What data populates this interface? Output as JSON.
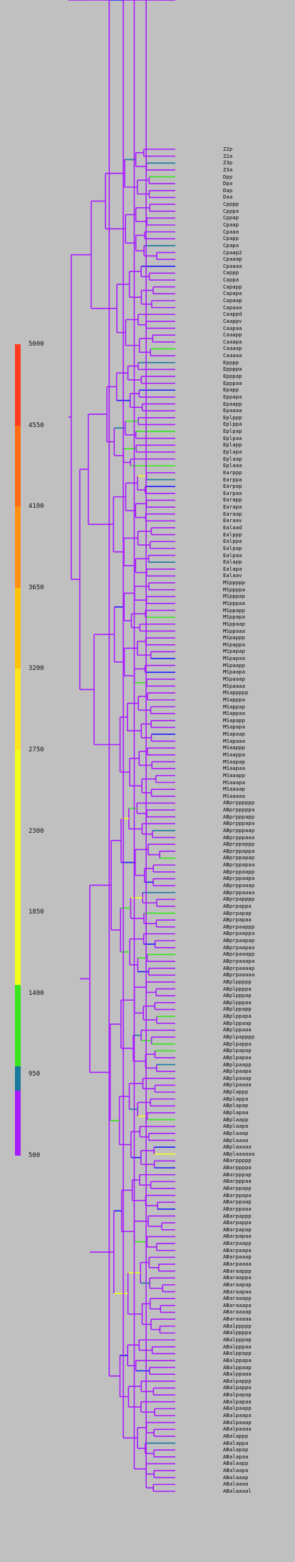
{
  "legend": {
    "ticks": [
      "5000",
      "4550",
      "4100",
      "3650",
      "3200",
      "2750",
      "2300",
      "1850",
      "1400",
      "950",
      "500"
    ],
    "bands": [
      {
        "color": "#ff3a1e"
      },
      {
        "color": "#ff6a14"
      },
      {
        "color": "#ff8f10"
      },
      {
        "color": "#ffc20a"
      },
      {
        "color": "#ffe61a"
      },
      {
        "color": "#f2ff1a"
      },
      {
        "color": "#36e61a"
      },
      {
        "color": "#177a9c"
      },
      {
        "color": "#a81aff"
      }
    ]
  },
  "tree": {
    "branch_color": "#a81aff",
    "accent_colors": [
      "#1a1aff",
      "#36e61a",
      "#f2ff1a",
      "#177a9c"
    ]
  },
  "leaves": [
    "Z2p",
    "Z2a",
    "Z3p",
    "Z3a",
    "Dpp",
    "Dpa",
    "Dap",
    "Daa",
    "Cpppp",
    "Cpppa",
    "Cppap",
    "Cpaap",
    "Cpaaa",
    "Cpapp",
    "Cpapa",
    "Cpaap2",
    "Cpaaap",
    "Cpaaaa",
    "Cappp",
    "Cappa",
    "Capapp",
    "Capapa",
    "Capaap",
    "Capaaa",
    "Caappd",
    "Caappv",
    "Caapaa",
    "Caaapp",
    "Caaapa",
    "Caaaap",
    "Caaaaa",
    "Epppp",
    "Eppppa",
    "Epppap",
    "Epppaa",
    "Epapp",
    "Eppapa",
    "Epaapp",
    "Epaaaa",
    "Eplppp",
    "Eplppa",
    "Eplpap",
    "Eplpaa",
    "Eplapp",
    "Eplapa",
    "Eplaap",
    "Eplaaa",
    "Earppp",
    "Earppa",
    "Earpap",
    "Earpaa",
    "Earapp",
    "Earapa",
    "Earaap",
    "Earaav",
    "Ealaad",
    "Ealppp",
    "Ealppa",
    "Ealpap",
    "Ealpaa",
    "Ealapp",
    "Ealapa",
    "Ealaav",
    "MSppppp",
    "MSppppa",
    "MSpppap",
    "MSpppaa",
    "MSppapp",
    "MSppapa",
    "MSppaap",
    "MSppaaa",
    "MSpappp",
    "MSpappa",
    "MSpapap",
    "MSpapaa",
    "MSpaapp",
    "MSpaapa",
    "MSpaaap",
    "MSpaaaa",
    "MSappppp",
    "MSapppa",
    "MSappap",
    "MSappaa",
    "MSapapp",
    "MSapapa",
    "MSapaap",
    "MSapaaa",
    "MSaappp",
    "MSaappa",
    "MSaapap",
    "MSaapaa",
    "MSaaapp",
    "MSaaapa",
    "MSaaaap",
    "MSaaaaa",
    "ABprpppppp",
    "ABprpppppa",
    "ABprpppapp",
    "ABprpppapa",
    "ABprpppaap",
    "ABprpppaaa",
    "ABprppappp",
    "ABprppappa",
    "ABprppapap",
    "ABprppapaa",
    "ABprppaapp",
    "ABprppaapa",
    "ABprppaaap",
    "ABprppaaaa",
    "ABprpapppp",
    "ABprpappa",
    "ABprpapap",
    "ABprpapaa",
    "ABprpaappp",
    "ABprpaappa",
    "ABprpaapap",
    "ABprpaapaa",
    "ABprpaaapp",
    "ABprpaaapa",
    "ABprpaaaap",
    "ABprpaaaaa",
    "ABplppppp",
    "ABplppppa",
    "ABplpppap",
    "ABplpppaa",
    "ABplppapp",
    "ABplppapa",
    "ABplppaap",
    "ABplppaaa",
    "ABplpapppp",
    "ABplpappa",
    "ABplpapap",
    "ABplpapaa",
    "ABplpaapp",
    "ABplpaapa",
    "ABplpaaap",
    "ABplpaaaa",
    "ABplappp",
    "ABplappa",
    "ABplapap",
    "ABplapaa",
    "ABplaapp",
    "ABplaapa",
    "ABplaaap",
    "ABplaaaa",
    "ABplaaaaa",
    "ABplaaaaaa",
    "ABarppppp",
    "ABarppppa",
    "ABarpppap",
    "ABarpppaa",
    "ABarppapp",
    "ABarppapa",
    "ABarppaap",
    "ABarppaaa",
    "ABarpappp",
    "ABarpappa",
    "ABarpapap",
    "ABarpapaa",
    "ABarpaapp",
    "ABarpaapa",
    "ABarpaaap",
    "ABarpaaaa",
    "ABaraappp",
    "ABaraappa",
    "ABaraapap",
    "ABaraapaa",
    "ABaraaapp",
    "ABaraaapa",
    "ABaraaaap",
    "ABaraaaaa",
    "ABalppppp",
    "ABalppppa",
    "ABalpppap",
    "ABalpppaa",
    "ABalppapp",
    "ABalppapa",
    "ABalppaap",
    "ABalppaaa",
    "ABalpappp",
    "ABalpappa",
    "ABalpapap",
    "ABalpapaa",
    "ABalpaapp",
    "ABalpaapa",
    "ABalpaaap",
    "ABalpaaaa",
    "ABalappp",
    "ABalappa",
    "ABalapap",
    "ABalapaa",
    "ABalaapp",
    "ABalaapa",
    "ABalaaap",
    "ABalaaaa",
    "ABalaaaal"
  ]
}
